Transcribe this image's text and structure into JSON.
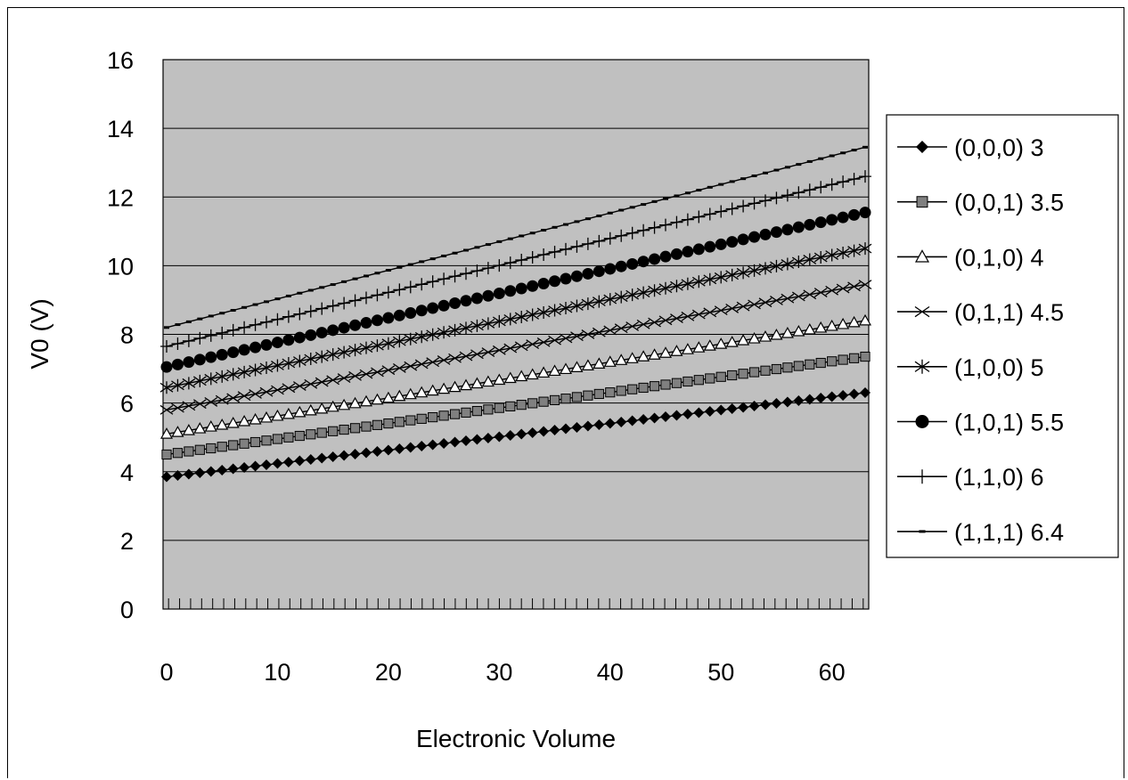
{
  "chart_data": {
    "type": "line",
    "title": "",
    "xlabel": "Electronic Volume",
    "ylabel": "V0 (V)",
    "xlim": [
      0,
      63
    ],
    "ylim": [
      0,
      16
    ],
    "x_ticks": [
      "0",
      "10",
      "20",
      "30",
      "40",
      "50",
      "60"
    ],
    "y_ticks": [
      "0",
      "2",
      "4",
      "6",
      "8",
      "10",
      "12",
      "14",
      "16"
    ],
    "grid": "horizontal",
    "plot_background": "#c0c0c0",
    "legend_position": "right",
    "x": "integers 0 to 63",
    "series": [
      {
        "name": "(0,0,0) 3",
        "marker": "diamond",
        "start": 3.85,
        "end": 6.3
      },
      {
        "name": "(0,0,1) 3.5",
        "marker": "square",
        "start": 4.5,
        "end": 7.35
      },
      {
        "name": "(0,1,0) 4",
        "marker": "triangle",
        "start": 5.1,
        "end": 8.4
      },
      {
        "name": "(0,1,1) 4.5",
        "marker": "x",
        "start": 5.8,
        "end": 9.45
      },
      {
        "name": "(1,0,0) 5",
        "marker": "star",
        "start": 6.45,
        "end": 10.5
      },
      {
        "name": "(1,0,1) 5.5",
        "marker": "circle",
        "start": 7.05,
        "end": 11.55
      },
      {
        "name": "(1,1,0) 6",
        "marker": "plus",
        "start": 7.65,
        "end": 12.6
      },
      {
        "name": "(1,1,1) 6.4",
        "marker": "dash",
        "start": 8.2,
        "end": 13.45
      }
    ]
  }
}
